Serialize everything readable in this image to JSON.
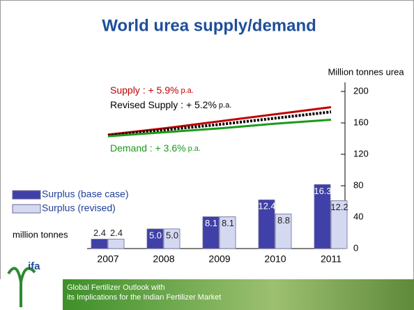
{
  "chart_data": {
    "type": "bar-line",
    "title": "World urea supply/demand",
    "ylabel": "Million tonnes urea",
    "unit_label": "million tonnes",
    "categories": [
      "2007",
      "2008",
      "2009",
      "2010",
      "2011"
    ],
    "ylim": [
      0,
      200
    ],
    "yticks": [
      0,
      40,
      80,
      120,
      160,
      200
    ],
    "y2lim": [
      0,
      40
    ],
    "grid": false,
    "series": [
      {
        "name": "Surplus (base case)",
        "kind": "bar",
        "axis": "y2",
        "color": "#4040a8",
        "values": [
          2.4,
          5.0,
          8.1,
          12.4,
          16.3
        ],
        "value_labels": [
          "2.4",
          "5.0",
          "8.1",
          "12.4",
          "16.3"
        ]
      },
      {
        "name": "Surplus (revised)",
        "kind": "bar",
        "axis": "y2",
        "color": "#d4d8f0",
        "values": [
          2.4,
          5.0,
          8.1,
          8.8,
          12.2
        ],
        "value_labels": [
          "2.4",
          "5.0",
          "8.1",
          "8.8",
          "12.2"
        ]
      },
      {
        "kind": "line",
        "color": "#c00000",
        "values": [
          145,
          153,
          162,
          171,
          180
        ]
      },
      {
        "kind": "line",
        "color": "#000000",
        "dash": true,
        "values": [
          144,
          151,
          158,
          166,
          174
        ]
      },
      {
        "kind": "line",
        "color": "#1a9a1a",
        "values": [
          143,
          148,
          153,
          159,
          164
        ]
      }
    ],
    "annotations": [
      {
        "text": "Supply : + 5.9%",
        "suffix": "p.a.",
        "color": "#c00000"
      },
      {
        "text": "Revised Supply : + 5.2%",
        "suffix": "p.a.",
        "color": "#000000"
      },
      {
        "text": "Demand : + 3.6%",
        "suffix": "p.a.",
        "color": "#1a9a1a"
      }
    ]
  },
  "footer": {
    "logo": "ifa",
    "lines": [
      "Global Fertilizer Outlook with",
      "its Implications for the Indian Fertilizer Market"
    ]
  }
}
